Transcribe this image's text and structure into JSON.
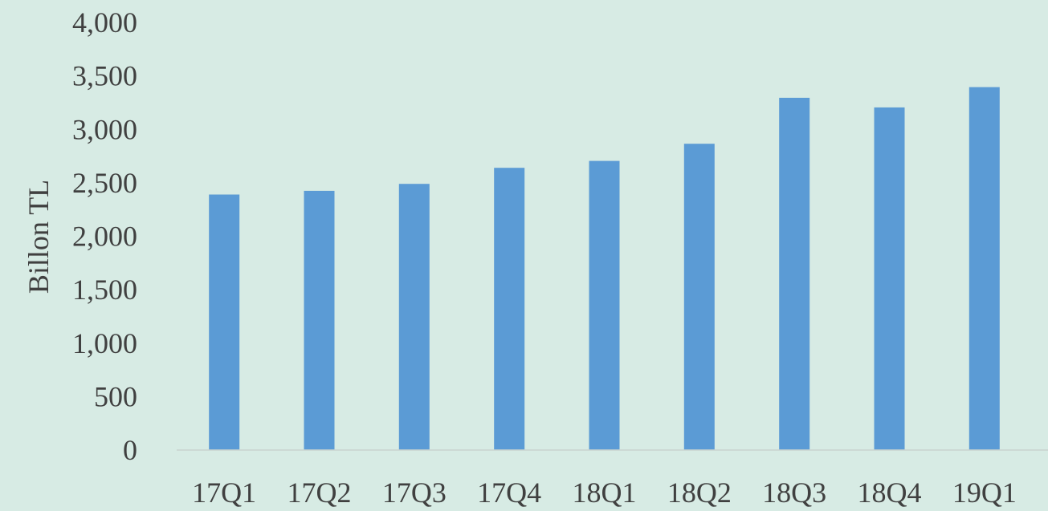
{
  "colors": {
    "background": "#d7ebe4",
    "bar": "#5b9bd5",
    "axis_line": "#c9d3cf",
    "text": "#404040"
  },
  "chart_data": {
    "type": "bar",
    "title": "",
    "xlabel": "",
    "ylabel": "Billon TL",
    "categories": [
      "17Q1",
      "17Q2",
      "17Q3",
      "17Q4",
      "18Q1",
      "18Q2",
      "18Q3",
      "18Q4",
      "19Q1"
    ],
    "values": [
      2390,
      2425,
      2490,
      2640,
      2705,
      2865,
      3295,
      3205,
      3395
    ],
    "ylim": [
      0,
      4000
    ],
    "y_ticks": [
      0,
      500,
      1000,
      1500,
      2000,
      2500,
      3000,
      3500,
      4000
    ],
    "y_tick_labels": [
      "0",
      "500",
      "1,000",
      "1,500",
      "2,000",
      "2,500",
      "3,000",
      "3,500",
      "4,000"
    ],
    "grid": false,
    "legend": "none"
  }
}
